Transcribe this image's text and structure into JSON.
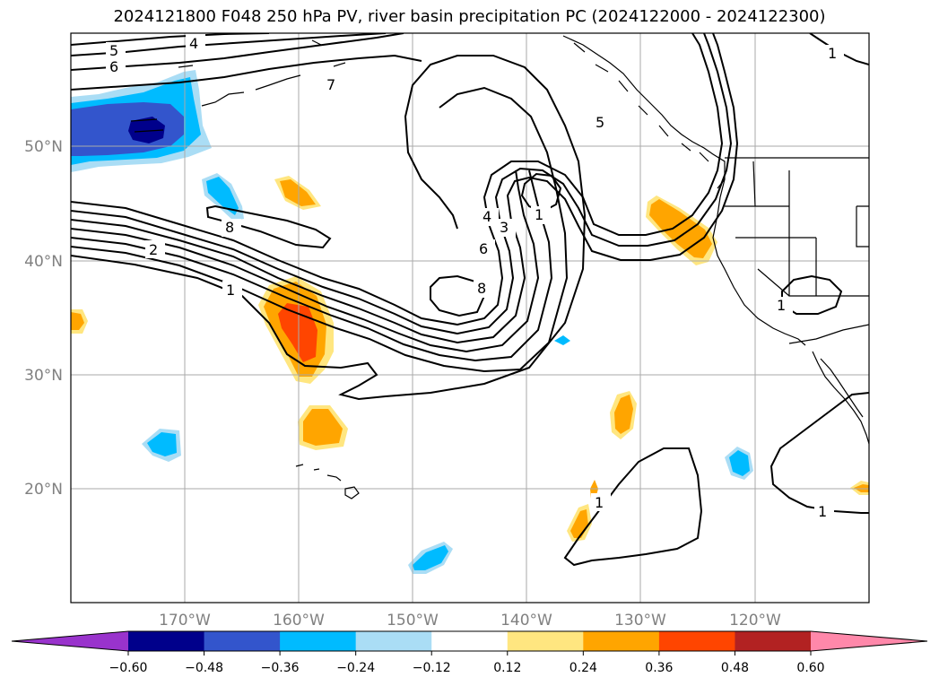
{
  "title": "2024121800 F048 250 hPa PV, river basin precipitation PC (2024122000 - 2024122300)",
  "map": {
    "lon_range": [
      -180,
      -110
    ],
    "lat_range": [
      10,
      60
    ],
    "lat_labels": [
      "50°N",
      "40°N",
      "30°N",
      "20°N"
    ],
    "lon_labels": [
      "170°W",
      "160°W",
      "150°W",
      "140°W",
      "130°W",
      "120°W"
    ],
    "gridlines": true
  },
  "contour_labels": [
    "5",
    "4",
    "6",
    "7",
    "5",
    "1",
    "8",
    "2",
    "1",
    "4",
    "3",
    "6",
    "1",
    "8",
    "1",
    "1",
    "1"
  ],
  "colorbar": {
    "ticks": [
      "−0.60",
      "−0.48",
      "−0.36",
      "−0.24",
      "−0.12",
      "0.12",
      "0.24",
      "0.36",
      "0.48",
      "0.60"
    ],
    "colors": [
      "#9933cc",
      "#00008b",
      "#3355cc",
      "#00bbff",
      "#aaddf5",
      "#ffffff",
      "#ffe680",
      "#ffa500",
      "#ff4500",
      "#b22222",
      "#ff88aa"
    ]
  }
}
